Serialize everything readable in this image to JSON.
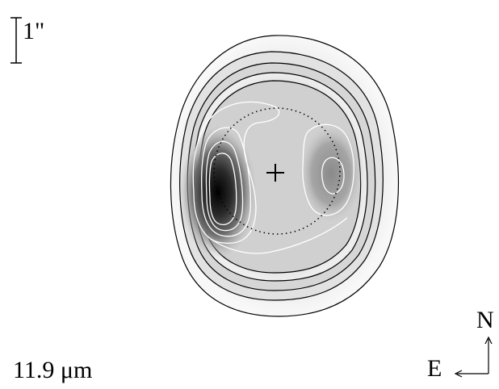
{
  "scale_bar": {
    "label": "1\""
  },
  "wavelength": {
    "label": "11.9 μm"
  },
  "compass": {
    "north": "N",
    "east": "E"
  },
  "colors": {
    "background": "#ffffff",
    "outer_contours": "#000000",
    "inner_contours": "#ffffff",
    "peak": "#000000",
    "emission_light": "#e6e6e6"
  },
  "markers": {
    "center_marker": "+",
    "orbit_circle": "dotted"
  }
}
